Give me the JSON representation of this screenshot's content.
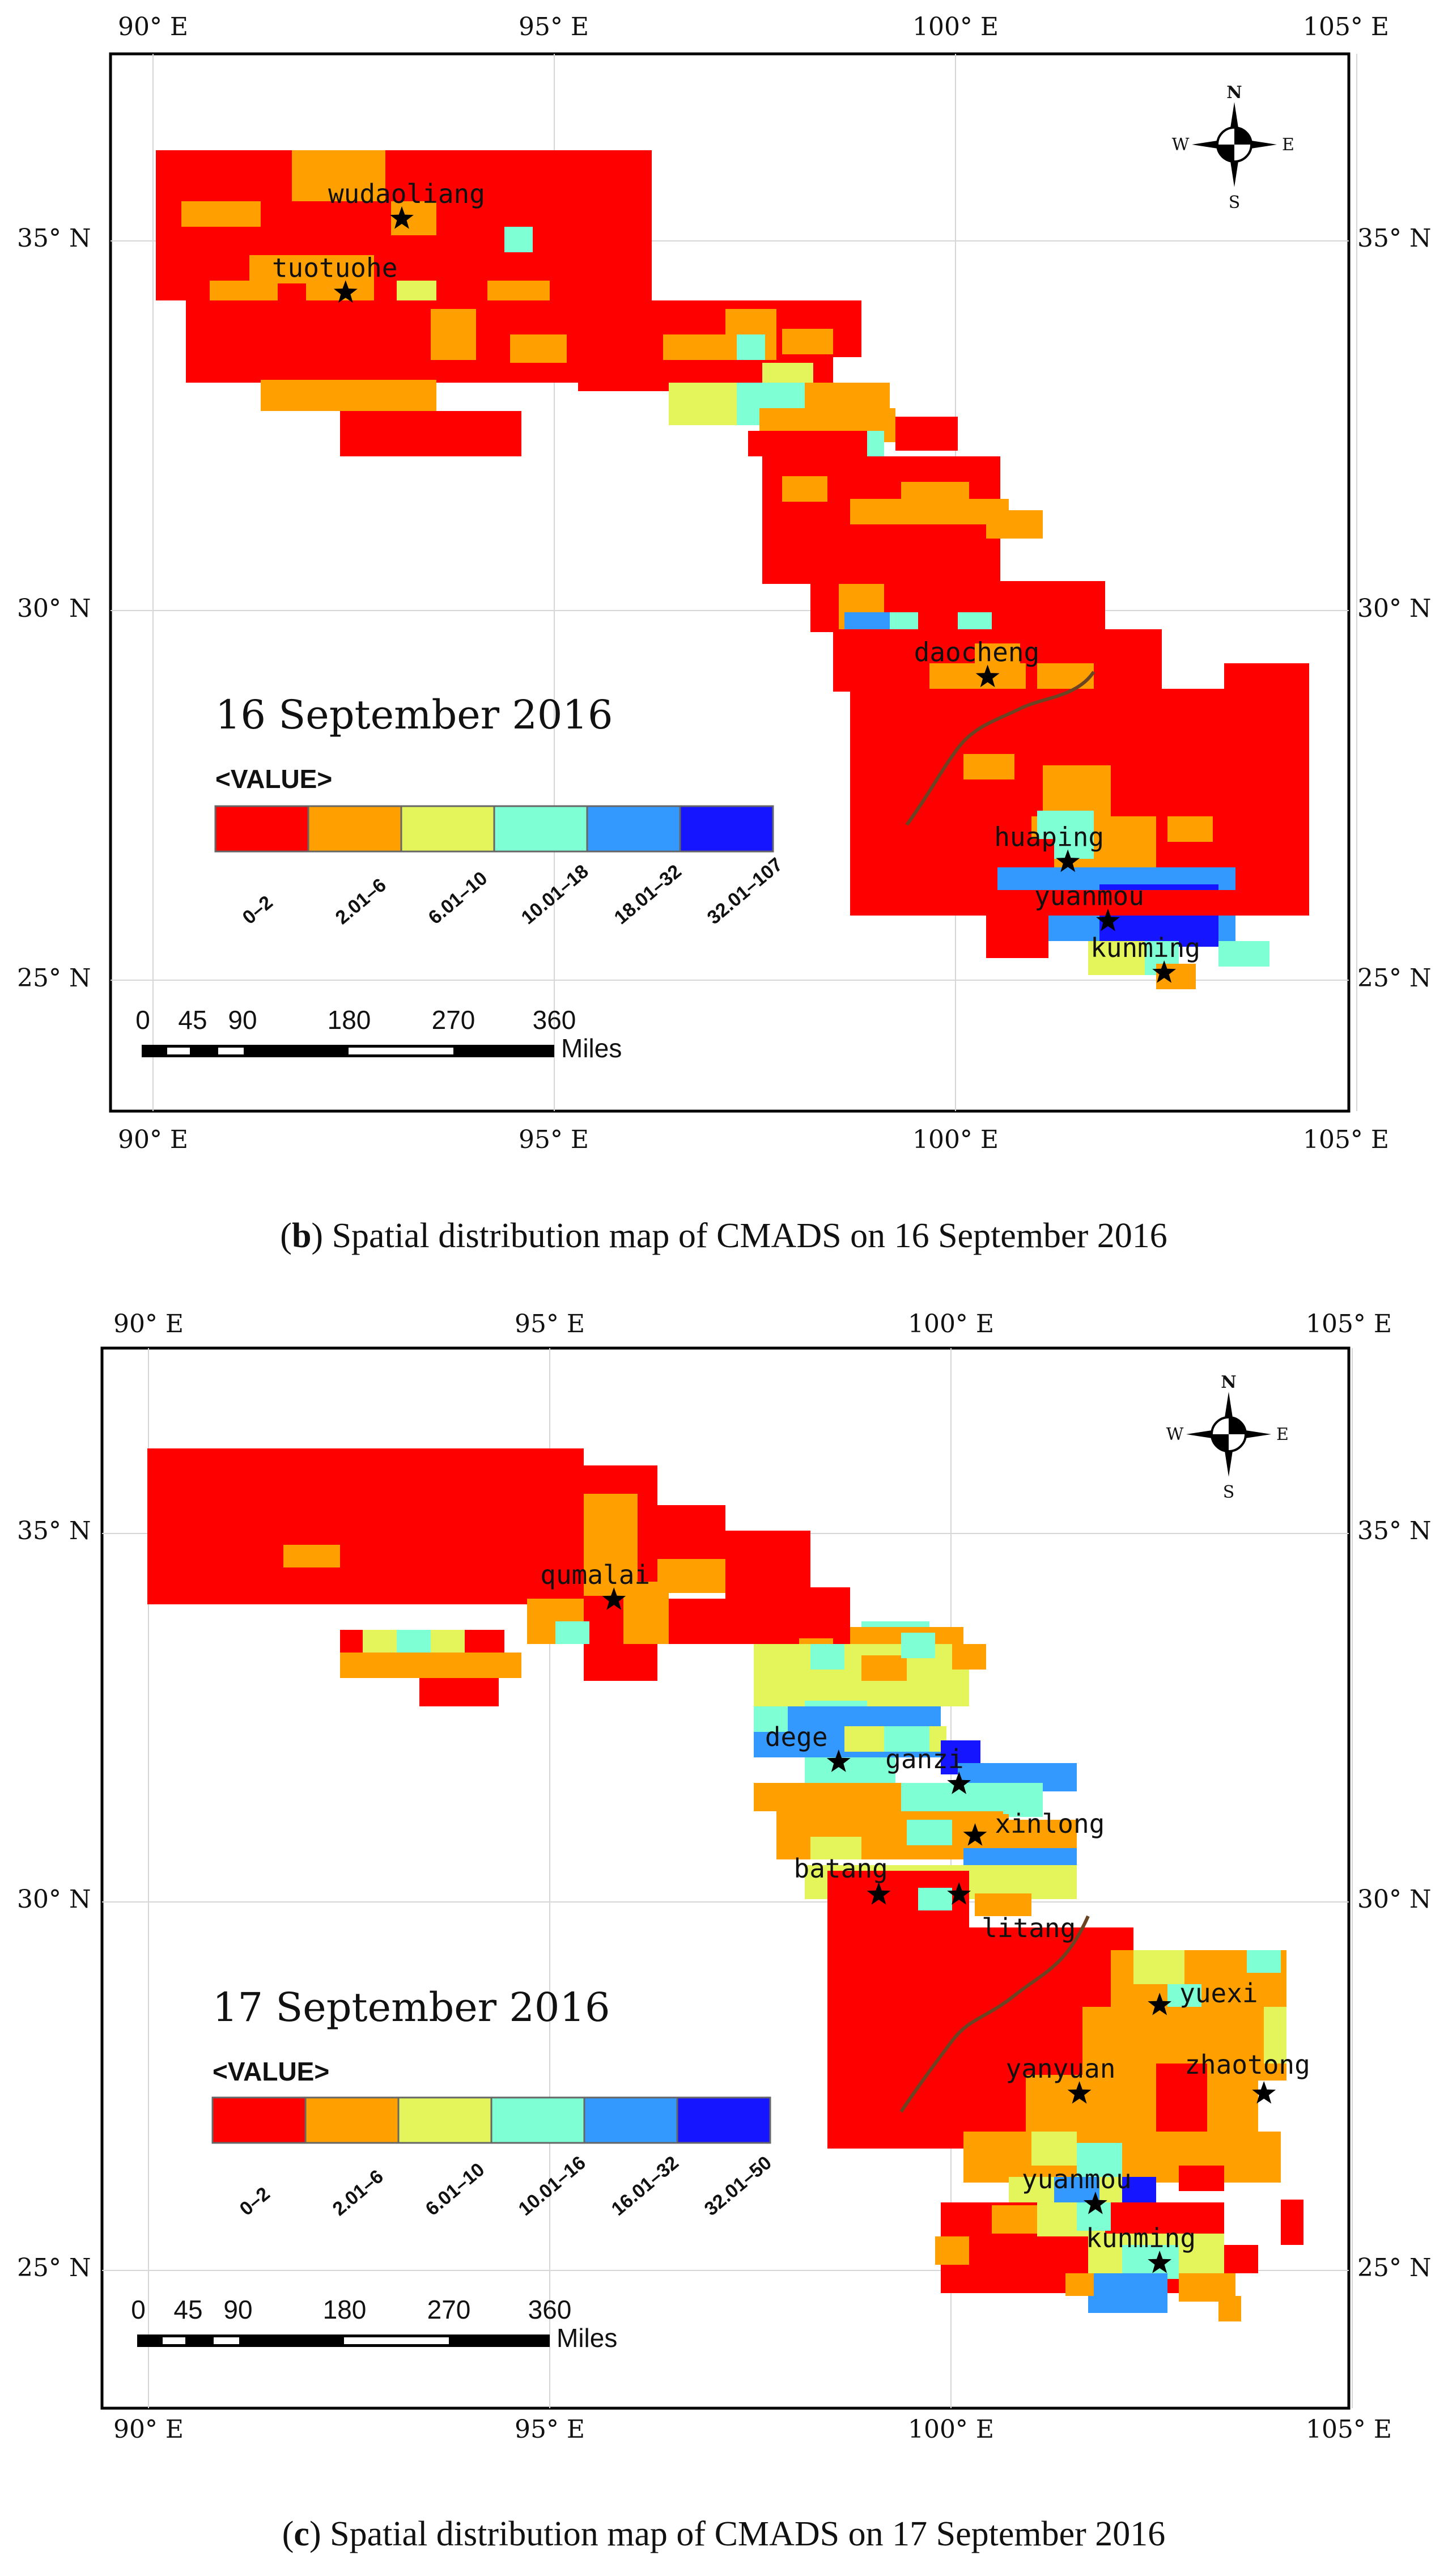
{
  "colors": {
    "class_colors": [
      "#ff0000",
      "#ffa000",
      "#e4f55c",
      "#7fffd4",
      "#3399ff",
      "#1515ff"
    ],
    "river": "#6b4423",
    "grid": "#d6d6d6",
    "frame": "#000000"
  },
  "panels": [
    {
      "id": "b",
      "caption_letter": "b",
      "caption_text": "Spatial distribution map of CMADS on 16 September 2016",
      "date_label": "16 September 2016",
      "legend": {
        "header": "<VALUE>",
        "classes": [
          "0–2",
          "2.01–6",
          "6.01–10",
          "10.01–18",
          "18.01–32",
          "32.01–107"
        ]
      },
      "axes": {
        "top_lon_labels": [
          "90° E",
          "95° E",
          "100° E",
          "105° E"
        ],
        "bottom_lon_labels": [
          "90° E",
          "95° E",
          "100° E",
          "105° E"
        ],
        "left_lat_labels": [
          "35° N",
          "30° N",
          "25° N"
        ],
        "right_lat_labels": [
          "35° N",
          "30° N",
          "25° N"
        ]
      },
      "scale_bar": {
        "ticks": [
          "0",
          "45",
          "90",
          "180",
          "270",
          "360"
        ],
        "unit": "Miles"
      },
      "compass": {
        "n": "N",
        "s": "S",
        "e": "E",
        "w": "W"
      },
      "stations": [
        {
          "name": "wudaoliang",
          "lon": 93.1,
          "lat": 35.3
        },
        {
          "name": "tuotuohe",
          "lon": 92.4,
          "lat": 34.3
        },
        {
          "name": "daocheng",
          "lon": 100.4,
          "lat": 29.1
        },
        {
          "name": "huaping",
          "lon": 101.4,
          "lat": 26.6
        },
        {
          "name": "yuanmou",
          "lon": 101.9,
          "lat": 25.8
        },
        {
          "name": "kunming",
          "lon": 102.6,
          "lat": 25.1
        }
      ]
    },
    {
      "id": "c",
      "caption_letter": "c",
      "caption_text": "Spatial distribution map of CMADS on 17 September 2016",
      "date_label": "17 September 2016",
      "legend": {
        "header": "<VALUE>",
        "classes": [
          "0–2",
          "2.01–6",
          "6.01–10",
          "10.01–16",
          "16.01–32",
          "32.01–50"
        ]
      },
      "axes": {
        "top_lon_labels": [
          "90° E",
          "95° E",
          "100° E",
          "105° E"
        ],
        "bottom_lon_labels": [
          "90° E",
          "95° E",
          "100° E",
          "105° E"
        ],
        "left_lat_labels": [
          "35° N",
          "30° N",
          "25° N"
        ],
        "right_lat_labels": [
          "35° N",
          "30° N",
          "25° N"
        ]
      },
      "scale_bar": {
        "ticks": [
          "0",
          "45",
          "90",
          "180",
          "270",
          "360"
        ],
        "unit": "Miles"
      },
      "compass": {
        "n": "N",
        "s": "S",
        "e": "E",
        "w": "W"
      },
      "stations": [
        {
          "name": "qumalai",
          "lon": 95.8,
          "lat": 34.1
        },
        {
          "name": "dege",
          "lon": 98.6,
          "lat": 31.9
        },
        {
          "name": "ganzi",
          "lon": 100.1,
          "lat": 31.6
        },
        {
          "name": "xinlong",
          "lon": 100.3,
          "lat": 30.9
        },
        {
          "name": "batang",
          "lon": 99.1,
          "lat": 30.1
        },
        {
          "name": "litang",
          "lon": 100.1,
          "lat": 30.1
        },
        {
          "name": "yuexi",
          "lon": 102.6,
          "lat": 28.6
        },
        {
          "name": "yanyuan",
          "lon": 101.6,
          "lat": 27.4
        },
        {
          "name": "zhaotong",
          "lon": 103.9,
          "lat": 27.4
        },
        {
          "name": "yuanmou",
          "lon": 101.8,
          "lat": 25.9
        },
        {
          "name": "kunming",
          "lon": 102.6,
          "lat": 25.1
        }
      ]
    }
  ]
}
